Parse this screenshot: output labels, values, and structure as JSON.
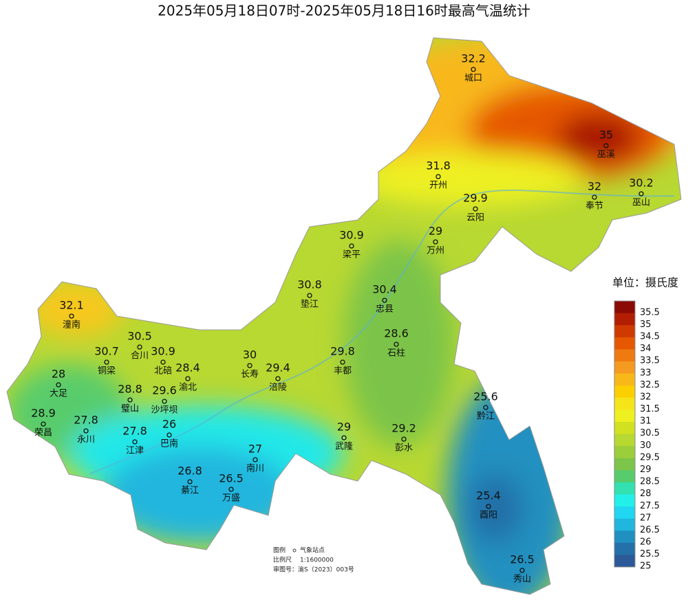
{
  "title": "2025年05月18日07时-2025年05月18日16时最高气温统计",
  "stations": [
    {
      "name": "城口",
      "value": 32.2
    },
    {
      "name": "巫溪",
      "value": 35
    },
    {
      "name": "开州",
      "value": 31.8
    },
    {
      "name": "奉节",
      "value": 32
    },
    {
      "name": "巫山",
      "value": 30.2
    },
    {
      "name": "云阳",
      "value": 29.9
    },
    {
      "name": "万州",
      "value": 29
    },
    {
      "name": "梁平",
      "value": 30.9
    },
    {
      "name": "垫江",
      "value": 30.8
    },
    {
      "name": "忠县",
      "value": 30.4
    },
    {
      "name": "潼南",
      "value": 32.1
    },
    {
      "name": "合川",
      "value": 30.5
    },
    {
      "name": "铜梁",
      "value": 30.7
    },
    {
      "name": "北碚",
      "value": 30.9
    },
    {
      "name": "石柱",
      "value": 28.6
    },
    {
      "name": "长寿",
      "value": 30
    },
    {
      "name": "丰都",
      "value": 29.8
    },
    {
      "name": "大足",
      "value": 28
    },
    {
      "name": "渝北",
      "value": 28.4
    },
    {
      "name": "涪陵",
      "value": 29.4
    },
    {
      "name": "璧山",
      "value": 28.8
    },
    {
      "name": "沙坪坝",
      "value": 29.6
    },
    {
      "name": "黔江",
      "value": 25.6
    },
    {
      "name": "荣昌",
      "value": 28.9
    },
    {
      "name": "永川",
      "value": 27.8
    },
    {
      "name": "江津",
      "value": 27.8
    },
    {
      "name": "巴南",
      "value": 26
    },
    {
      "name": "武隆",
      "value": 29
    },
    {
      "name": "彭水",
      "value": 29.2
    },
    {
      "name": "南川",
      "value": 27
    },
    {
      "name": "綦江",
      "value": 26.8
    },
    {
      "name": "万盛",
      "value": 26.5
    },
    {
      "name": "酉阳",
      "value": 25.4
    },
    {
      "name": "秀山",
      "value": 26.5
    }
  ],
  "legend": {
    "title": "单位：摄氏度",
    "levels": [
      {
        "value": 35.5,
        "color": "#8b0a05"
      },
      {
        "value": 35,
        "color": "#b21e02"
      },
      {
        "value": 34.5,
        "color": "#cf3a00"
      },
      {
        "value": 34,
        "color": "#e65800"
      },
      {
        "value": 33.5,
        "color": "#f07a12"
      },
      {
        "value": 33,
        "color": "#f59a20"
      },
      {
        "value": 32.5,
        "color": "#f8b81a"
      },
      {
        "value": 32,
        "color": "#fcd000"
      },
      {
        "value": 31.5,
        "color": "#f6e41a"
      },
      {
        "value": 31,
        "color": "#eef022"
      },
      {
        "value": 30.5,
        "color": "#d2e022"
      },
      {
        "value": 30,
        "color": "#b8d832"
      },
      {
        "value": 29.5,
        "color": "#9ccd3a"
      },
      {
        "value": 29,
        "color": "#7cc44a"
      },
      {
        "value": 28.5,
        "color": "#58cc6c"
      },
      {
        "value": 28,
        "color": "#32e0b0"
      },
      {
        "value": 27.5,
        "color": "#22f0e8"
      },
      {
        "value": 27,
        "color": "#20d6f0"
      },
      {
        "value": 26.5,
        "color": "#20b6de"
      },
      {
        "value": 26,
        "color": "#2090c0"
      },
      {
        "value": 25.5,
        "color": "#2470a8"
      },
      {
        "value": 25,
        "color": "#2c5a98"
      }
    ]
  },
  "notes": {
    "legend_label": "图例",
    "station_label": "气象站点",
    "scale_label": "比例尺",
    "scale": "1:1600000",
    "approval": "审图号：渝S（2023）003号"
  }
}
